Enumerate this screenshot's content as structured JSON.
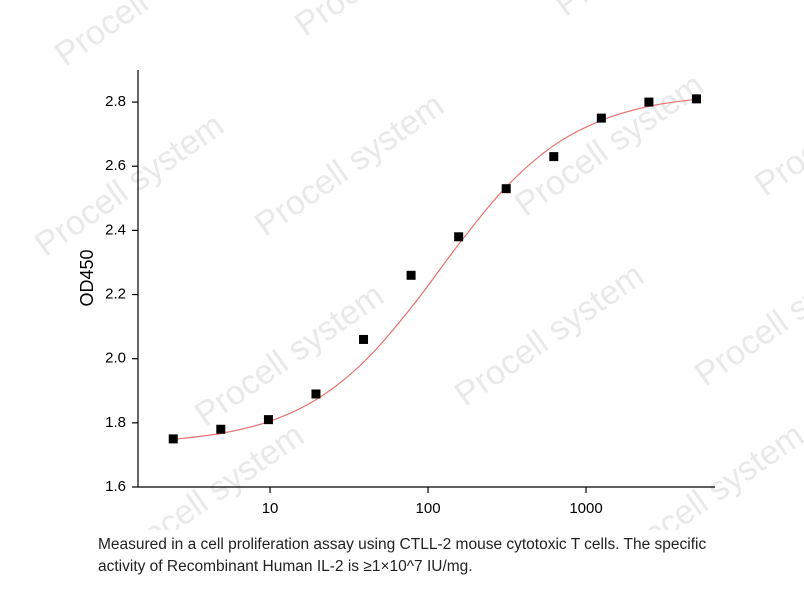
{
  "chart_data": {
    "type": "scatter",
    "y_label": "OD450",
    "note": "Measured in a cell proliferation assay using CTLL-2 mouse cytotoxic T cells. The specific activity of Recombinant Human IL-2 is ≥1×10^7 IU/mg.",
    "watermark": "Procell system",
    "log_x": true,
    "xlim": [
      1.46,
      6550
    ],
    "xticks": [
      10,
      100,
      1000
    ],
    "ylim": [
      1.6,
      2.9
    ],
    "yticks": [
      {
        "value": 1.6,
        "label": "1.6"
      },
      {
        "value": 1.8,
        "label": "1.8"
      },
      {
        "value": 2.0,
        "label": "2.0"
      },
      {
        "value": 2.2,
        "label": "2.2"
      },
      {
        "value": 2.4,
        "label": "2.4"
      },
      {
        "value": 2.6,
        "label": "2.6"
      },
      {
        "value": 2.8,
        "label": "2.8"
      }
    ],
    "x": [
      2.44,
      4.88,
      9.77,
      19.53,
      39.06,
      78.13,
      156.25,
      312.5,
      625,
      1250,
      2500,
      5000
    ],
    "values": [
      1.75,
      1.78,
      1.81,
      1.89,
      2.06,
      2.26,
      2.38,
      2.53,
      2.63,
      2.75,
      2.8,
      2.81
    ],
    "color": "#000000",
    "fit": {
      "color": "#e8706e",
      "x": [
        2.5,
        5,
        10,
        20,
        40,
        80,
        160,
        320,
        640,
        1280,
        2560,
        5000
      ],
      "values": [
        1.749,
        1.768,
        1.805,
        1.875,
        1.994,
        2.165,
        2.363,
        2.541,
        2.668,
        2.745,
        2.788,
        2.809
      ]
    }
  }
}
